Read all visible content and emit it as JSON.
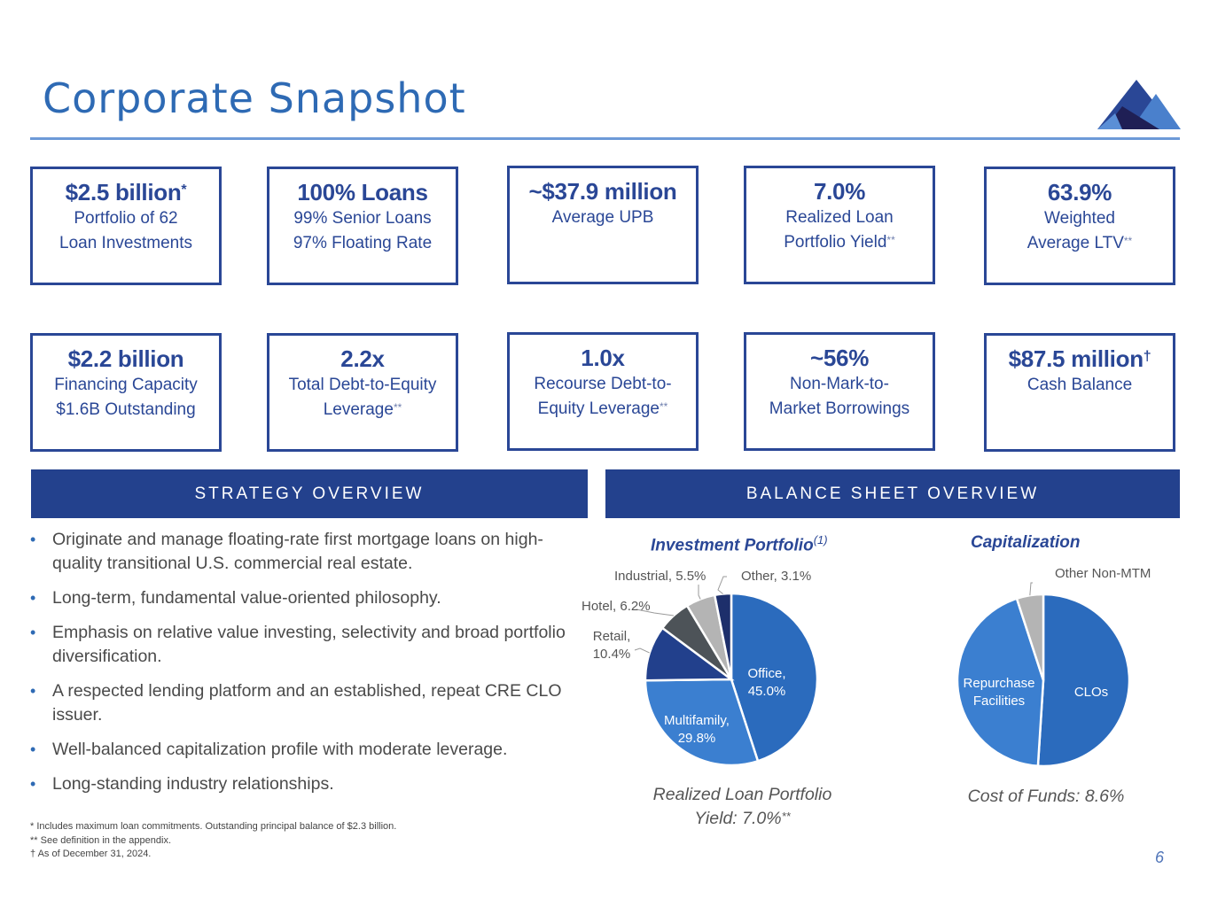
{
  "header": {
    "title": "Corporate Snapshot",
    "logo_icon": "mountain-logo-icon"
  },
  "kpis_row1": [
    {
      "value": "$2.5 billion",
      "mark": "*",
      "lines": [
        "Portfolio of 62",
        "Loan Investments"
      ],
      "line_marks": [
        "",
        ""
      ]
    },
    {
      "value": "100% Loans",
      "mark": "",
      "lines": [
        "99% Senior Loans",
        "97% Floating Rate"
      ],
      "line_marks": [
        "",
        ""
      ]
    },
    {
      "value": "~$37.9 million",
      "mark": "",
      "lines": [
        "Average UPB"
      ],
      "line_marks": [
        ""
      ]
    },
    {
      "value": "7.0%",
      "mark": "",
      "lines": [
        "Realized Loan",
        "Portfolio Yield"
      ],
      "line_marks": [
        "",
        "**"
      ]
    },
    {
      "value": "63.9%",
      "mark": "",
      "lines": [
        "Weighted",
        "Average LTV"
      ],
      "line_marks": [
        "",
        "**"
      ]
    }
  ],
  "kpis_row2": [
    {
      "value": "$2.2 billion",
      "mark": "",
      "lines": [
        "Financing Capacity",
        "$1.6B Outstanding"
      ],
      "line_marks": [
        "",
        ""
      ]
    },
    {
      "value": "2.2x",
      "mark": "",
      "lines": [
        "Total Debt-to-Equity",
        "Leverage"
      ],
      "line_marks": [
        "",
        "**"
      ]
    },
    {
      "value": "1.0x",
      "mark": "",
      "lines": [
        "Recourse Debt-to-",
        "Equity Leverage"
      ],
      "line_marks": [
        "",
        "**"
      ]
    },
    {
      "value": "~56%",
      "mark": "",
      "lines": [
        "Non-Mark-to-",
        "Market Borrowings"
      ],
      "line_marks": [
        "",
        ""
      ]
    },
    {
      "value": "$87.5 million",
      "mark": "†",
      "lines": [
        "Cash Balance"
      ],
      "line_marks": [
        ""
      ]
    }
  ],
  "strategy": {
    "banner": "STRATEGY OVERVIEW",
    "bullet_glyph": "•",
    "bullets": [
      "Originate and manage floating-rate first mortgage loans on high-quality transitional U.S. commercial real estate.",
      "Long-term, fundamental value-oriented philosophy.",
      "Emphasis on relative value investing, selectivity and broad portfolio diversification.",
      "A respected lending platform and an established, repeat CRE CLO issuer.",
      "Well-balanced capitalization profile with moderate leverage.",
      "Long-standing industry relationships."
    ]
  },
  "balance_sheet": {
    "banner": "BALANCE SHEET OVERVIEW"
  },
  "footnotes": [
    "* Includes maximum loan commitments. Outstanding principal balance of $2.3 billion.",
    "** See definition in the appendix.",
    "† As of December 31, 2024."
  ],
  "page_number": "6",
  "chart_data": [
    {
      "type": "pie",
      "title": "Investment Portfolio",
      "title_superscript": "(1)",
      "start": "12 o'clock, clockwise",
      "slices": [
        {
          "label": "Office",
          "value": 45.0,
          "label_text": "Office,",
          "value_text": "45.0%",
          "color": "#2b6bbd",
          "label_position": "inside"
        },
        {
          "label": "Multifamily",
          "value": 29.8,
          "label_text": "Multifamily,",
          "value_text": "29.8%",
          "color": "#3b7fd0",
          "label_position": "inside"
        },
        {
          "label": "Retail",
          "value": 10.4,
          "label_text": "Retail,",
          "value_text": "10.4%",
          "color": "#22408c",
          "label_position": "outside"
        },
        {
          "label": "Hotel",
          "value": 6.2,
          "label_text": "Hotel, 6.2%",
          "value_text": "",
          "color": "#4d5358",
          "label_position": "outside"
        },
        {
          "label": "Industrial",
          "value": 5.5,
          "label_text": "Industrial, 5.5%",
          "value_text": "",
          "color": "#b4b4b4",
          "label_position": "outside"
        },
        {
          "label": "Other",
          "value": 3.1,
          "label_text": "Other, 3.1%",
          "value_text": "",
          "color": "#1d2f6b",
          "label_position": "outside"
        }
      ],
      "caption_lines": [
        "Realized Loan Portfolio",
        "Yield: 7.0%"
      ],
      "caption_mark": "**"
    },
    {
      "type": "pie",
      "title": "Capitalization",
      "start": "12 o'clock, clockwise",
      "values_estimated": true,
      "slices": [
        {
          "label": "CLOs",
          "value": 51,
          "label_text": "CLOs",
          "color": "#2b6bbd",
          "label_position": "inside"
        },
        {
          "label": "Repurchase Facilities",
          "value": 44,
          "label_text": "Repurchase Facilities",
          "color": "#3b7fd0",
          "label_position": "inside"
        },
        {
          "label": "Other Non-MTM",
          "value": 5,
          "label_text": "Other Non-MTM",
          "color": "#b4b4b4",
          "label_position": "outside"
        }
      ],
      "caption_lines": [
        "Cost of Funds: 8.6%"
      ],
      "caption_mark": ""
    }
  ]
}
